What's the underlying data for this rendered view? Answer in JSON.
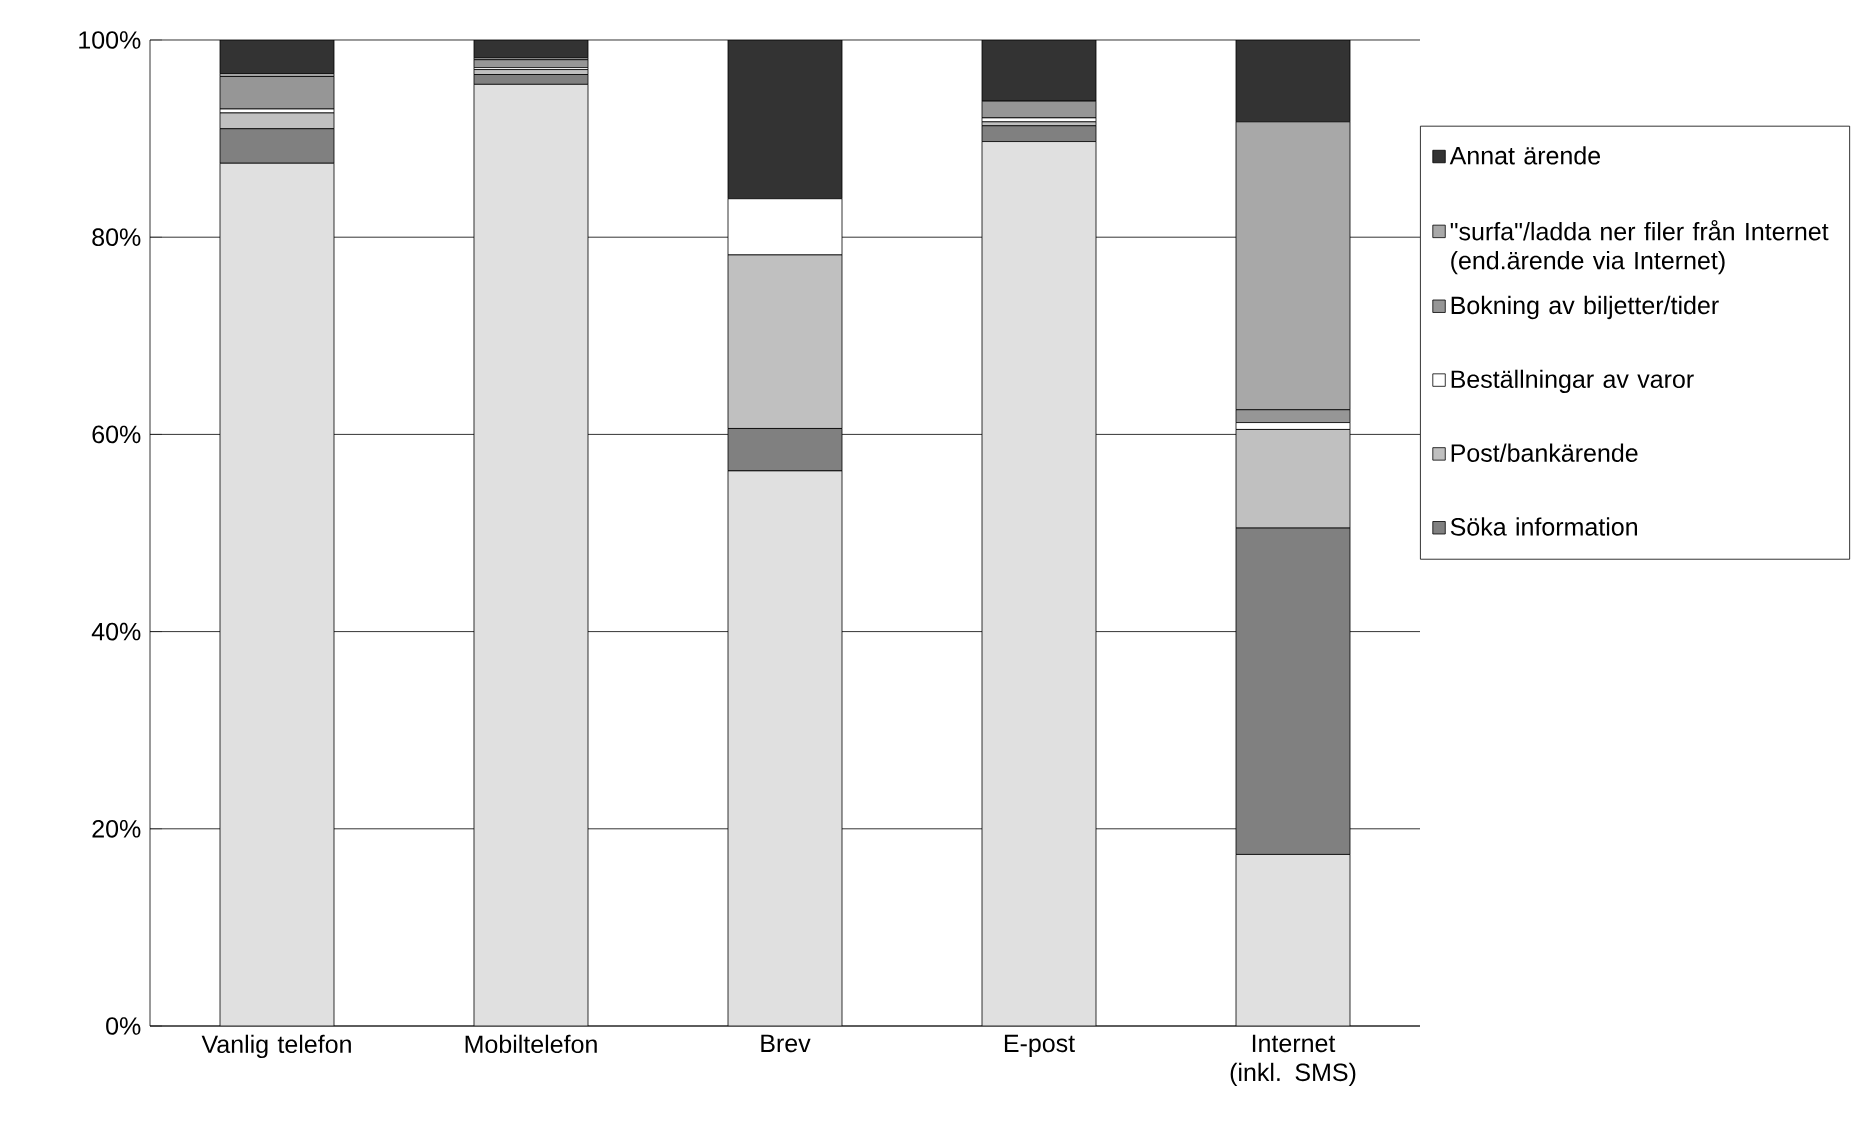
{
  "chart_data": {
    "type": "bar",
    "stacked": true,
    "categories": [
      "Vanlig telefon",
      "Mobiltelefon",
      "Brev",
      "E-post",
      "Internet (inkl. SMS)"
    ],
    "series": [
      {
        "color": "#e0e0e0",
        "values": [
          87.5,
          95.5,
          56.3,
          89.7,
          17.4
        ]
      },
      {
        "name": "Söka information",
        "color": "#808080",
        "values": [
          3.5,
          1.0,
          4.3,
          1.6,
          33.1
        ]
      },
      {
        "name": "Post/bankärende",
        "color": "#c0c0c0",
        "values": [
          1.6,
          0.5,
          17.6,
          0.4,
          10.0
        ]
      },
      {
        "name": "Beställningar av varor",
        "color": "#ffffff",
        "values": [
          0.4,
          0.2,
          5.7,
          0.4,
          0.7
        ]
      },
      {
        "name": "Bokning av biljetter/tider",
        "color": "#969696",
        "values": [
          3.3,
          0.8,
          0,
          1.7,
          1.3
        ]
      },
      {
        "name": "\"surfa\"/ladda ner filer från Internet (end.ärende via Internet)",
        "color": "#a8a8a8",
        "values": [
          0.3,
          0.2,
          0,
          null,
          29.2
        ]
      },
      {
        "name": "Annat ärende",
        "color": "#333333",
        "values": [
          3.4,
          1.8,
          16.1,
          6.2,
          8.3
        ]
      }
    ],
    "ylim": [
      0,
      100
    ],
    "yticks": [
      {
        "value": 0,
        "label": "0%"
      },
      {
        "value": 20,
        "label": "20%"
      },
      {
        "value": 40,
        "label": "40%"
      },
      {
        "value": 60,
        "label": "60%"
      },
      {
        "value": 80,
        "label": "80%"
      },
      {
        "value": 100,
        "label": "100%"
      }
    ],
    "grid": "y",
    "legend": "right"
  }
}
